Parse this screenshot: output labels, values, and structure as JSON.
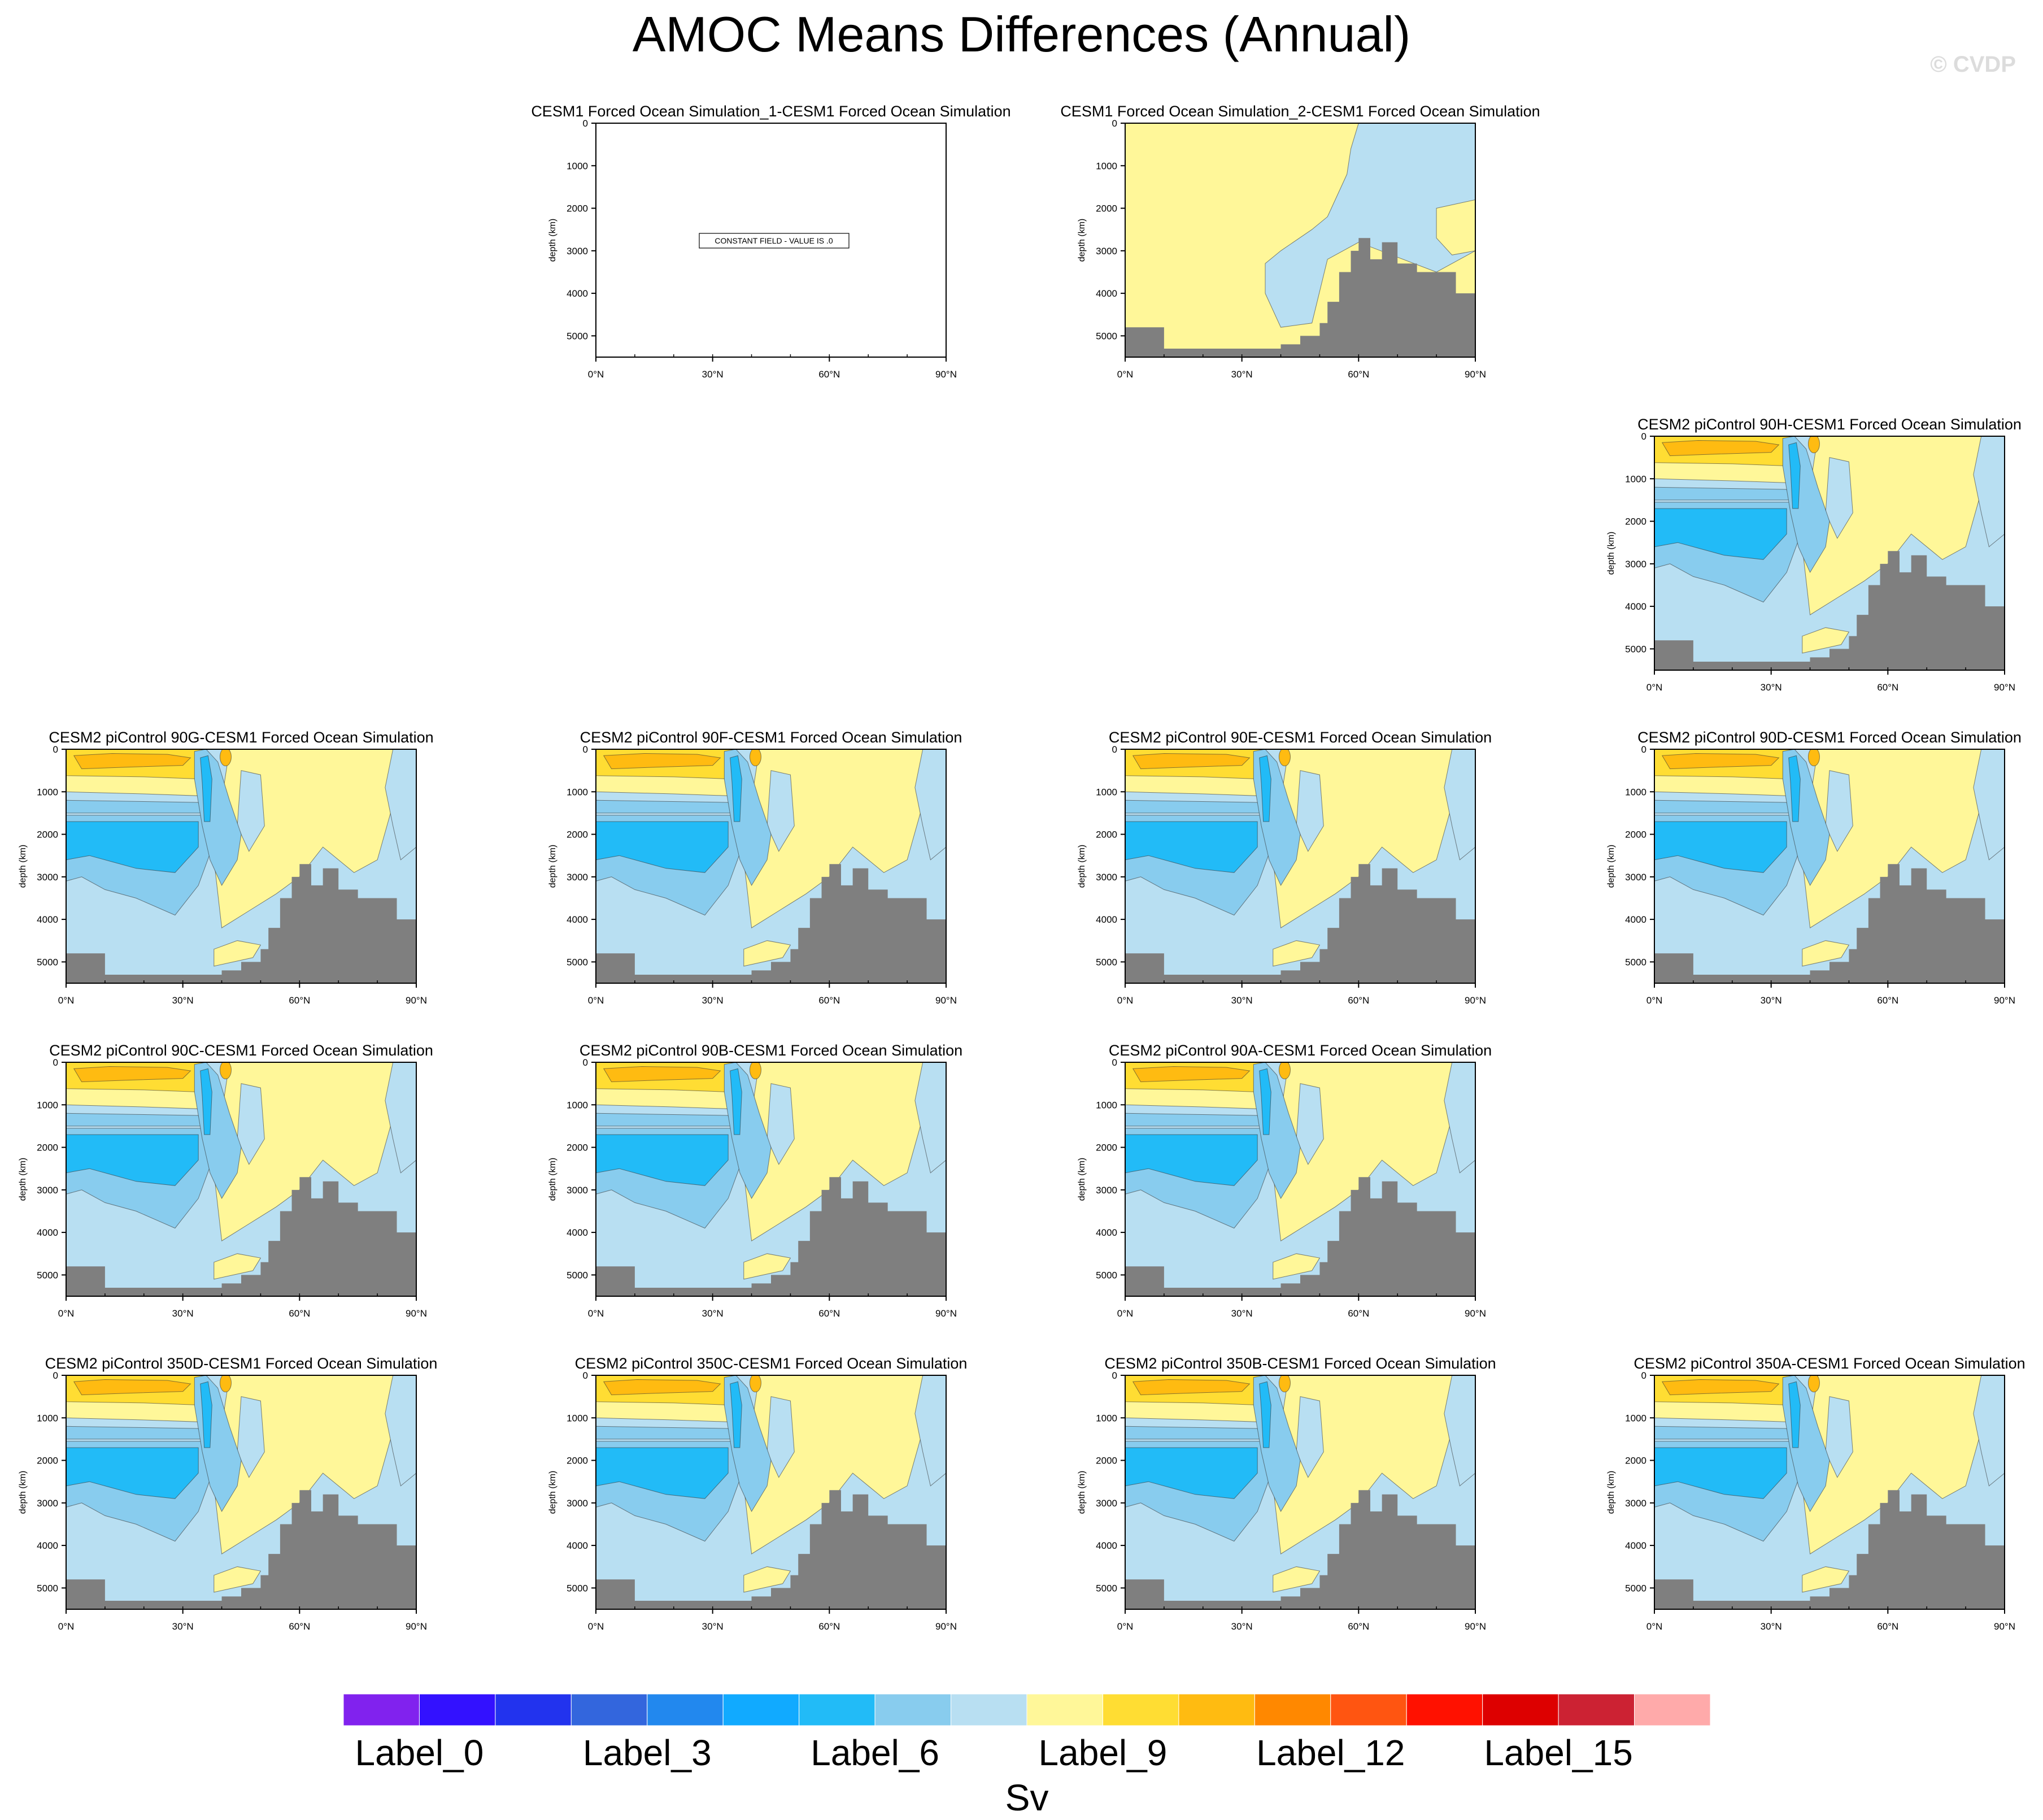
{
  "title": "AMOC Means Differences (Annual)",
  "watermark": "© CVDP",
  "chart_data": {
    "type": "contour-panels",
    "title": "AMOC Means Differences (Annual)",
    "ylabel": "depth (km)",
    "y_ticks": [
      "0",
      "1000",
      "2000",
      "3000",
      "4000",
      "5000"
    ],
    "x_ticks": [
      "0°N",
      "30°N",
      "60°N",
      "90°N"
    ],
    "ylim": [
      0,
      5500
    ],
    "xlim": [
      0,
      90
    ],
    "constant_field_note": "CONSTANT FIELD - VALUE IS .0",
    "panels": [
      {
        "title": "CESM1 Forced Ocean Simulation_1-CESM1 Forced Ocean Simulation",
        "row": 0,
        "col": 1,
        "style": "constant"
      },
      {
        "title": "CESM1 Forced Ocean Simulation_2-CESM1 Forced Ocean Simulation",
        "row": 0,
        "col": 2,
        "style": "simple"
      },
      {
        "title": "CESM2 piControl 90H-CESM1 Forced Ocean Simulation",
        "row": 1,
        "col": 3,
        "style": "amoc"
      },
      {
        "title": "CESM2 piControl 90G-CESM1 Forced Ocean Simulation",
        "row": 2,
        "col": 0,
        "style": "amoc"
      },
      {
        "title": "CESM2 piControl 90F-CESM1 Forced Ocean Simulation",
        "row": 2,
        "col": 1,
        "style": "amoc"
      },
      {
        "title": "CESM2 piControl 90E-CESM1 Forced Ocean Simulation",
        "row": 2,
        "col": 2,
        "style": "amoc"
      },
      {
        "title": "CESM2 piControl 90D-CESM1 Forced Ocean Simulation",
        "row": 2,
        "col": 3,
        "style": "amoc"
      },
      {
        "title": "CESM2 piControl 90C-CESM1 Forced Ocean Simulation",
        "row": 3,
        "col": 0,
        "style": "amoc"
      },
      {
        "title": "CESM2 piControl 90B-CESM1 Forced Ocean Simulation",
        "row": 3,
        "col": 1,
        "style": "amoc"
      },
      {
        "title": "CESM2 piControl 90A-CESM1 Forced Ocean Simulation",
        "row": 3,
        "col": 2,
        "style": "amoc"
      },
      {
        "title": "CESM2 piControl 350D-CESM1 Forced Ocean Simulation",
        "row": 4,
        "col": 0,
        "style": "amoc"
      },
      {
        "title": "CESM2 piControl 350C-CESM1 Forced Ocean Simulation",
        "row": 4,
        "col": 1,
        "style": "amoc"
      },
      {
        "title": "CESM2 piControl 350B-CESM1 Forced Ocean Simulation",
        "row": 4,
        "col": 2,
        "style": "amoc"
      },
      {
        "title": "CESM2 piControl 350A-CESM1 Forced Ocean Simulation",
        "row": 4,
        "col": 3,
        "style": "amoc"
      }
    ],
    "bathymetry_depths_by_latitude": [
      {
        "lat": 0,
        "depth": 4800
      },
      {
        "lat": 5,
        "depth": 4800
      },
      {
        "lat": 10,
        "depth": 5300
      },
      {
        "lat": 15,
        "depth": 5300
      },
      {
        "lat": 20,
        "depth": 5300
      },
      {
        "lat": 25,
        "depth": 5300
      },
      {
        "lat": 30,
        "depth": 5300
      },
      {
        "lat": 35,
        "depth": 5300
      },
      {
        "lat": 40,
        "depth": 5200
      },
      {
        "lat": 45,
        "depth": 5000
      },
      {
        "lat": 50,
        "depth": 4700
      },
      {
        "lat": 52,
        "depth": 4200
      },
      {
        "lat": 55,
        "depth": 3500
      },
      {
        "lat": 58,
        "depth": 3000
      },
      {
        "lat": 60,
        "depth": 2700
      },
      {
        "lat": 63,
        "depth": 3200
      },
      {
        "lat": 66,
        "depth": 2800
      },
      {
        "lat": 70,
        "depth": 3300
      },
      {
        "lat": 75,
        "depth": 3500
      },
      {
        "lat": 80,
        "depth": 3500
      },
      {
        "lat": 85,
        "depth": 4000
      },
      {
        "lat": 90,
        "depth": 4000
      }
    ],
    "colorbar": {
      "label": "Sv",
      "colors": [
        "#8122ee",
        "#3311ff",
        "#2233ee",
        "#3366dd",
        "#2288ee",
        "#11aaff",
        "#22bbf7",
        "#88ccee",
        "#b8dff2",
        "#fff799",
        "#ffdd33",
        "#ffbb11",
        "#ff8800",
        "#ff5511",
        "#ff1100",
        "#dd0000",
        "#cc2233",
        "#ffaaaa"
      ],
      "tick_labels": [
        "Label_0",
        "Label_3",
        "Label_6",
        "Label_9",
        "Label_12",
        "Label_15"
      ]
    },
    "colors": {
      "land": "#7f7f7f"
    }
  }
}
